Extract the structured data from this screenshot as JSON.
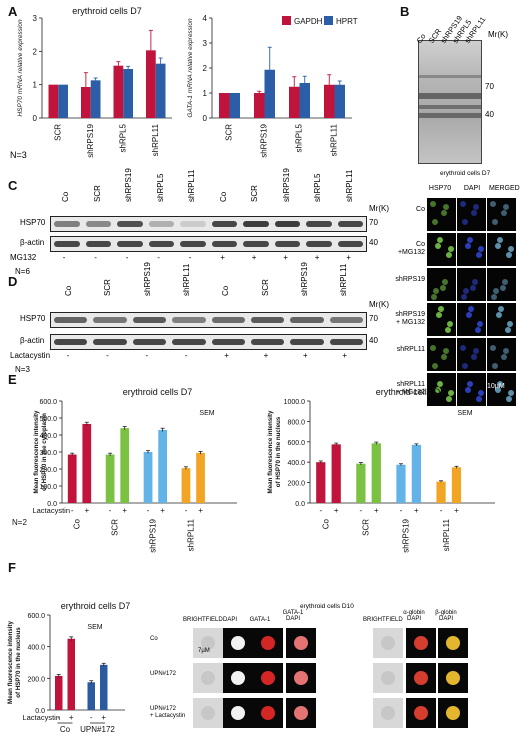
{
  "panels": {
    "A": "A",
    "B": "B",
    "C": "C",
    "D": "D",
    "E": "E",
    "F": "F"
  },
  "colors": {
    "red": "#c0143c",
    "blue": "#2b5ea6",
    "green": "#7cc242",
    "lightblue": "#62b4e8",
    "orange": "#f2a524",
    "darkred": "#c0143c",
    "navy": "#2a5aa0",
    "blot_band": "#2a2a2a"
  },
  "panel_A": {
    "left": {
      "title": "erythroid cells D7",
      "ylabel": "HSP70 mRNA relative expression",
      "n_label": "N=3"
    },
    "right": {
      "title": "",
      "ylabel": "GATA-1 mRNA relative expression"
    },
    "legend": [
      "GAPDH",
      "HPRT"
    ]
  },
  "panel_B": {
    "lanes": [
      "Co",
      "SCR",
      "shRPS19",
      "shRPL5",
      "shRPL11"
    ],
    "mr_label": "Mr(K)",
    "markers": [
      "70",
      "40"
    ],
    "if_title": "erythroid cells D7",
    "if_cols": [
      "HSP70",
      "DAPI",
      "MERGED"
    ],
    "if_rows": [
      "Co",
      "Co\n+MG132",
      "shRPS19",
      "shRPS19\n+ MG132",
      "shRPL11",
      "shRPL11\n+ MG132"
    ],
    "scale": "10µM"
  },
  "panel_C": {
    "lanes": [
      "Co",
      "SCR",
      "shRPS19",
      "shRPL5",
      "shRPL11",
      "Co",
      "SCR",
      "shRPS19",
      "shRPL5",
      "shRPL11"
    ],
    "rows": [
      "HSP70",
      "β-actin"
    ],
    "mr_label": "Mr(K)",
    "markers": [
      "70",
      "40"
    ],
    "treat_label": "MG132",
    "treat": [
      "-",
      "-",
      "-",
      "-",
      "-",
      "+",
      "+",
      "+",
      "+",
      "+"
    ],
    "n_label": "N=6"
  },
  "panel_D": {
    "lanes": [
      "Co",
      "SCR",
      "shRPS19",
      "shRPL11",
      "Co",
      "SCR",
      "shRPS19",
      "shRPL11"
    ],
    "rows": [
      "HSP70",
      "β-actin"
    ],
    "mr_label": "Mr(K)",
    "markers": [
      "70",
      "40"
    ],
    "treat_label": "Lactacystin",
    "treat": [
      "-",
      "-",
      "-",
      "-",
      "+",
      "+",
      "+",
      "+"
    ],
    "n_label": "N=3"
  },
  "panel_E": {
    "treat_label": "Lactacystin",
    "n_label": "N=2",
    "sem": "SEM"
  },
  "panel_F": {
    "images_title": "erythroid cells D10",
    "cols_left": [
      "BRIGHTFIELD",
      "DAPI",
      "GATA-1",
      "GATA-1\nDAPI"
    ],
    "cols_right": [
      "BRIGHTFIELD",
      "α-globin\nDAPI",
      "β-globin\nDAPI"
    ],
    "rows": [
      "Co",
      "UPN#172",
      "UPN#172\n+ Lactacystin"
    ],
    "scale": "7µM"
  },
  "chart_data": [
    {
      "type": "bar",
      "title": "erythroid cells D7",
      "ylabel": "HSP70 mRNA relative expression",
      "categories": [
        "SCR",
        "shRPS19",
        "shRPL5",
        "shRPL11"
      ],
      "ylim": [
        0,
        3
      ],
      "yticks": [
        0,
        1,
        2,
        3
      ],
      "series": [
        {
          "name": "GAPDH",
          "values": [
            1.0,
            0.93,
            1.57,
            2.03
          ],
          "errors": [
            0,
            0.43,
            0.12,
            0.6
          ]
        },
        {
          "name": "HPRT",
          "values": [
            1.0,
            1.13,
            1.47,
            1.63
          ],
          "errors": [
            0,
            0.07,
            0.08,
            0.17
          ]
        }
      ]
    },
    {
      "type": "bar",
      "title": "",
      "ylabel": "GATA-1 mRNA relative expression",
      "categories": [
        "SCR",
        "shRPS19",
        "shRPL5",
        "shRPL11"
      ],
      "ylim": [
        0,
        4
      ],
      "yticks": [
        0,
        1,
        2,
        3,
        4
      ],
      "series": [
        {
          "name": "GAPDH",
          "values": [
            1.0,
            1.0,
            1.25,
            1.33
          ],
          "errors": [
            0,
            0.07,
            0.4,
            0.4
          ]
        },
        {
          "name": "HPRT",
          "values": [
            1.0,
            1.93,
            1.4,
            1.33
          ],
          "errors": [
            0,
            0.9,
            0.27,
            0.15
          ]
        }
      ]
    },
    {
      "type": "bar",
      "title": "erythroid cells D7",
      "ylabel": "Mean fluorescence intensity of HSP70 in the cytoplasm",
      "annotation": "SEM",
      "groups": [
        "Co",
        "SCR",
        "shRPS19",
        "shRPL11"
      ],
      "treatment": [
        "-",
        "+"
      ],
      "ylim": [
        0,
        600
      ],
      "yticks": [
        0,
        100,
        200,
        300,
        400,
        500,
        600
      ],
      "values": [
        285,
        465,
        285,
        440,
        300,
        430,
        205,
        295
      ],
      "errors": [
        8,
        10,
        8,
        10,
        8,
        10,
        8,
        8
      ],
      "bar_colors": [
        "#c0143c",
        "#c0143c",
        "#7cc242",
        "#7cc242",
        "#62b4e8",
        "#62b4e8",
        "#f2a524",
        "#f2a524"
      ]
    },
    {
      "type": "bar",
      "title": "erythroid cells D7",
      "ylabel": "Mean fluorescence intensity of HSP70 in the nucleus",
      "annotation": "SEM",
      "groups": [
        "Co",
        "SCR",
        "shRPS19",
        "shRPL11"
      ],
      "treatment": [
        "-",
        "+"
      ],
      "ylim": [
        0,
        1000
      ],
      "yticks": [
        0,
        200,
        400,
        600,
        800,
        1000
      ],
      "values": [
        400,
        575,
        385,
        585,
        375,
        570,
        210,
        350
      ],
      "errors": [
        12,
        12,
        12,
        12,
        10,
        10,
        8,
        10
      ],
      "bar_colors": [
        "#c0143c",
        "#c0143c",
        "#7cc242",
        "#7cc242",
        "#62b4e8",
        "#62b4e8",
        "#f2a524",
        "#f2a524"
      ]
    },
    {
      "type": "bar",
      "title": "erythroid cells D7",
      "ylabel": "Mean fluorescence intensity of HSP70 in the nucleus",
      "annotation": "SEM",
      "groups": [
        "Co",
        "UPN#172"
      ],
      "treatment": [
        "-",
        "+"
      ],
      "ylim": [
        0,
        600
      ],
      "yticks": [
        0,
        200,
        400,
        600
      ],
      "values": [
        215,
        450,
        175,
        285
      ],
      "errors": [
        10,
        12,
        10,
        10
      ],
      "bar_colors": [
        "#c0143c",
        "#c0143c",
        "#2a5aa0",
        "#2a5aa0"
      ]
    }
  ]
}
